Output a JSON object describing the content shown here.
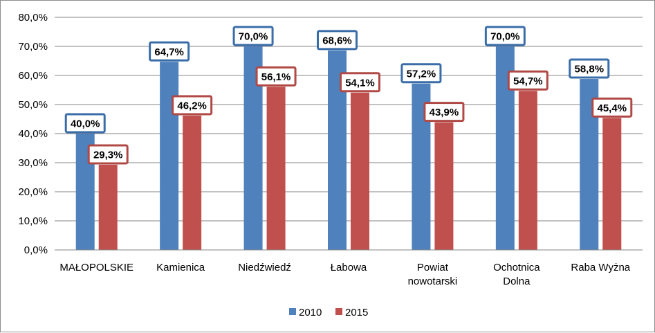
{
  "chart_data": {
    "type": "bar",
    "title": "",
    "xlabel": "",
    "ylabel": "",
    "ylim": [
      0,
      80
    ],
    "y_ticks": [
      "0,0%",
      "10,0%",
      "20,0%",
      "30,0%",
      "40,0%",
      "50,0%",
      "60,0%",
      "70,0%",
      "80,0%"
    ],
    "grid": true,
    "legend_position": "bottom",
    "categories": [
      [
        "MAŁOPOLSKIE"
      ],
      [
        "Kamienica"
      ],
      [
        "Niedźwiedź"
      ],
      [
        "Łabowa"
      ],
      [
        "Powiat",
        "nowotarski"
      ],
      [
        "Ochotnica",
        "Dolna"
      ],
      [
        "Raba Wyżna"
      ]
    ],
    "series": [
      {
        "name": "2010",
        "color": "#4f81bd",
        "label_border": "#3a6da8",
        "values": [
          40.0,
          64.7,
          70.0,
          68.6,
          57.2,
          70.0,
          58.8
        ],
        "labels": [
          "40,0%",
          "64,7%",
          "70,0%",
          "68,6%",
          "57,2%",
          "70,0%",
          "58,8%"
        ]
      },
      {
        "name": "2015",
        "color": "#c0504d",
        "label_border": "#b04845",
        "values": [
          29.3,
          46.2,
          56.1,
          54.1,
          43.9,
          54.7,
          45.4
        ],
        "labels": [
          "29,3%",
          "46,2%",
          "56,1%",
          "54,1%",
          "43,9%",
          "54,7%",
          "45,4%"
        ]
      }
    ]
  }
}
